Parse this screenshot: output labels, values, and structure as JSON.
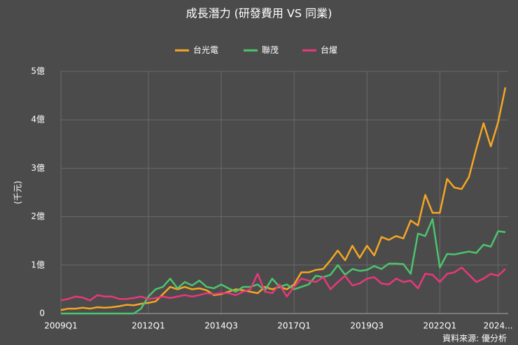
{
  "chart_data": {
    "type": "line",
    "title": "成長潛力 (研發費用 VS 同業)",
    "y_label": "(千元)",
    "source": "資料來源: 優分析",
    "categories": [
      "2009Q1",
      null,
      null,
      null,
      null,
      null,
      null,
      null,
      null,
      null,
      null,
      null,
      "2012Q1",
      null,
      null,
      null,
      null,
      null,
      null,
      null,
      null,
      null,
      "2014Q3",
      null,
      null,
      null,
      null,
      null,
      null,
      null,
      null,
      null,
      "2017Q1",
      null,
      null,
      null,
      null,
      null,
      null,
      null,
      null,
      null,
      "2019Q3",
      null,
      null,
      null,
      null,
      null,
      null,
      null,
      null,
      null,
      "2022Q1",
      null,
      null,
      null,
      null,
      null,
      null,
      null,
      "2024...",
      null
    ],
    "series": [
      {
        "name": "台光電",
        "color": "#f5a623",
        "values": [
          0.07,
          0.1,
          0.1,
          0.12,
          0.1,
          0.13,
          0.12,
          0.13,
          0.15,
          0.18,
          0.17,
          0.2,
          0.22,
          0.25,
          0.4,
          0.55,
          0.5,
          0.55,
          0.5,
          0.52,
          0.48,
          0.38,
          0.4,
          0.45,
          0.5,
          0.48,
          0.45,
          0.42,
          0.55,
          0.5,
          0.55,
          0.5,
          0.6,
          0.85,
          0.85,
          0.9,
          0.92,
          1.1,
          1.3,
          1.1,
          1.4,
          1.15,
          1.4,
          1.2,
          1.58,
          1.52,
          1.6,
          1.55,
          1.92,
          1.82,
          2.45,
          2.08,
          2.08,
          2.78,
          2.6,
          2.57,
          2.82,
          3.4,
          3.93,
          3.45,
          3.95,
          4.67
        ]
      },
      {
        "name": "聯茂",
        "color": "#4cc46e",
        "values": [
          0,
          0,
          0,
          0,
          0,
          0,
          0,
          0,
          0,
          0,
          0,
          0.1,
          0.35,
          0.5,
          0.55,
          0.72,
          0.52,
          0.65,
          0.58,
          0.68,
          0.55,
          0.52,
          0.6,
          0.52,
          0.45,
          0.55,
          0.55,
          0.6,
          0.48,
          0.72,
          0.55,
          0.6,
          0.5,
          0.55,
          0.6,
          0.78,
          0.75,
          0.8,
          1.0,
          0.8,
          0.92,
          0.88,
          0.9,
          0.98,
          0.92,
          1.03,
          1.03,
          1.02,
          0.82,
          1.65,
          1.6,
          1.95,
          0.95,
          1.23,
          1.22,
          1.25,
          1.28,
          1.25,
          1.42,
          1.38,
          1.7,
          1.68
        ]
      },
      {
        "name": "台燿",
        "color": "#e8387a",
        "values": [
          0.27,
          0.3,
          0.35,
          0.33,
          0.27,
          0.38,
          0.35,
          0.35,
          0.3,
          0.3,
          0.32,
          0.35,
          0.3,
          0.32,
          0.35,
          0.32,
          0.35,
          0.38,
          0.35,
          0.38,
          0.42,
          0.4,
          0.42,
          0.42,
          0.38,
          0.45,
          0.5,
          0.82,
          0.45,
          0.42,
          0.6,
          0.35,
          0.55,
          0.72,
          0.68,
          0.65,
          0.75,
          0.5,
          0.65,
          0.78,
          0.58,
          0.62,
          0.72,
          0.75,
          0.62,
          0.6,
          0.72,
          0.65,
          0.68,
          0.52,
          0.82,
          0.8,
          0.65,
          0.82,
          0.85,
          0.95,
          0.8,
          0.65,
          0.72,
          0.82,
          0.78,
          0.92
        ]
      }
    ],
    "ylim": [
      0,
      5
    ],
    "yticks": [
      0,
      {
        "value": 1,
        "label": "1億"
      },
      {
        "value": 2,
        "label": "2億"
      },
      {
        "value": 3,
        "label": "3億"
      },
      {
        "value": 4,
        "label": "4億"
      },
      {
        "value": 5,
        "label": "5億"
      }
    ],
    "grid": true
  }
}
